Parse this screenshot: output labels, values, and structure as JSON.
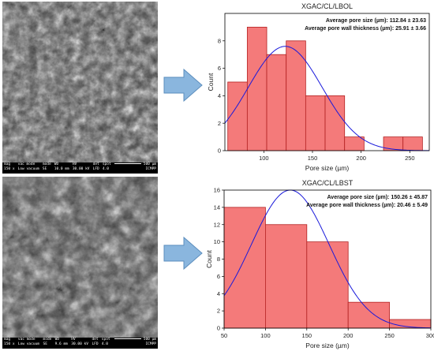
{
  "panels": [
    {
      "id": "top",
      "sem": {
        "legend_headers": [
          "mag",
          "vac mode",
          "mode",
          "WD",
          "HV",
          "det",
          "spot"
        ],
        "legend_values": [
          "150 x",
          "Low vacuum",
          "SE",
          "10.0 mm",
          "30.00 kV",
          "LFD",
          "4.0"
        ],
        "scalebar": "500 µm",
        "institution": "ICMPP"
      },
      "chart_data": {
        "type": "bar",
        "title": "XGAC/CL/LBOL",
        "annotations": [
          {
            "label": "Average pore size (µm):",
            "value": "112.84 ± 23.63"
          },
          {
            "label": "Average pore wall thickness (µm):",
            "value": "25.91 ± 3.66"
          }
        ],
        "xlabel": "Pore size (µm)",
        "ylabel": "Count",
        "xlim": [
          60,
          270
        ],
        "ylim": [
          0,
          10
        ],
        "xticks": [
          100,
          150,
          200,
          250
        ],
        "yticks": [
          0,
          2,
          4,
          6,
          8
        ],
        "bins": [
          {
            "x0": 63,
            "x1": 83,
            "count": 5
          },
          {
            "x0": 83,
            "x1": 103,
            "count": 9
          },
          {
            "x0": 103,
            "x1": 123,
            "count": 7
          },
          {
            "x0": 123,
            "x1": 143,
            "count": 8
          },
          {
            "x0": 143,
            "x1": 163,
            "count": 4
          },
          {
            "x0": 163,
            "x1": 183,
            "count": 4
          },
          {
            "x0": 183,
            "x1": 203,
            "count": 1
          },
          {
            "x0": 203,
            "x1": 223,
            "count": 0
          },
          {
            "x0": 223,
            "x1": 243,
            "count": 1
          },
          {
            "x0": 243,
            "x1": 263,
            "count": 1
          }
        ],
        "fit": {
          "type": "normal",
          "mean": 122,
          "sd": 38,
          "peak": 7.6
        },
        "colors": {
          "bar_fill": "#f47a7a",
          "bar_edge": "#b22222",
          "fit_line": "#1a1adb"
        }
      }
    },
    {
      "id": "bottom",
      "sem": {
        "legend_headers": [
          "mag",
          "vac mode",
          "mode",
          "WD",
          "HV",
          "det",
          "spot"
        ],
        "legend_values": [
          "150 x",
          "Low vacuum",
          "SE",
          "9.6 mm",
          "30.00 kV",
          "LFD",
          "4.0"
        ],
        "scalebar": "500 µm",
        "institution": "ICMPP"
      },
      "chart_data": {
        "type": "bar",
        "title": "XGAC/CL/LBST",
        "annotations": [
          {
            "label": "Average pore size (µm):",
            "value": "150.26 ± 45.87"
          },
          {
            "label": "Average pore wall thickness (µm):",
            "value": "20.46 ± 5.49"
          }
        ],
        "xlabel": "Pore size (µm)",
        "ylabel": "Count",
        "xlim": [
          50,
          300
        ],
        "ylim": [
          0,
          16
        ],
        "xticks": [
          50,
          100,
          150,
          200,
          250,
          300
        ],
        "yticks": [
          0,
          2,
          4,
          6,
          8,
          10,
          12,
          14,
          16
        ],
        "bins": [
          {
            "x0": 50,
            "x1": 100,
            "count": 14
          },
          {
            "x0": 100,
            "x1": 150,
            "count": 12
          },
          {
            "x0": 150,
            "x1": 200,
            "count": 10
          },
          {
            "x0": 200,
            "x1": 250,
            "count": 3
          },
          {
            "x0": 250,
            "x1": 300,
            "count": 1
          }
        ],
        "fit": {
          "type": "normal",
          "mean": 130,
          "sd": 47,
          "peak": 16
        },
        "colors": {
          "bar_fill": "#f47a7a",
          "bar_edge": "#b22222",
          "fit_line": "#1a1adb"
        }
      }
    }
  ],
  "arrow_color": "#8ab6de"
}
